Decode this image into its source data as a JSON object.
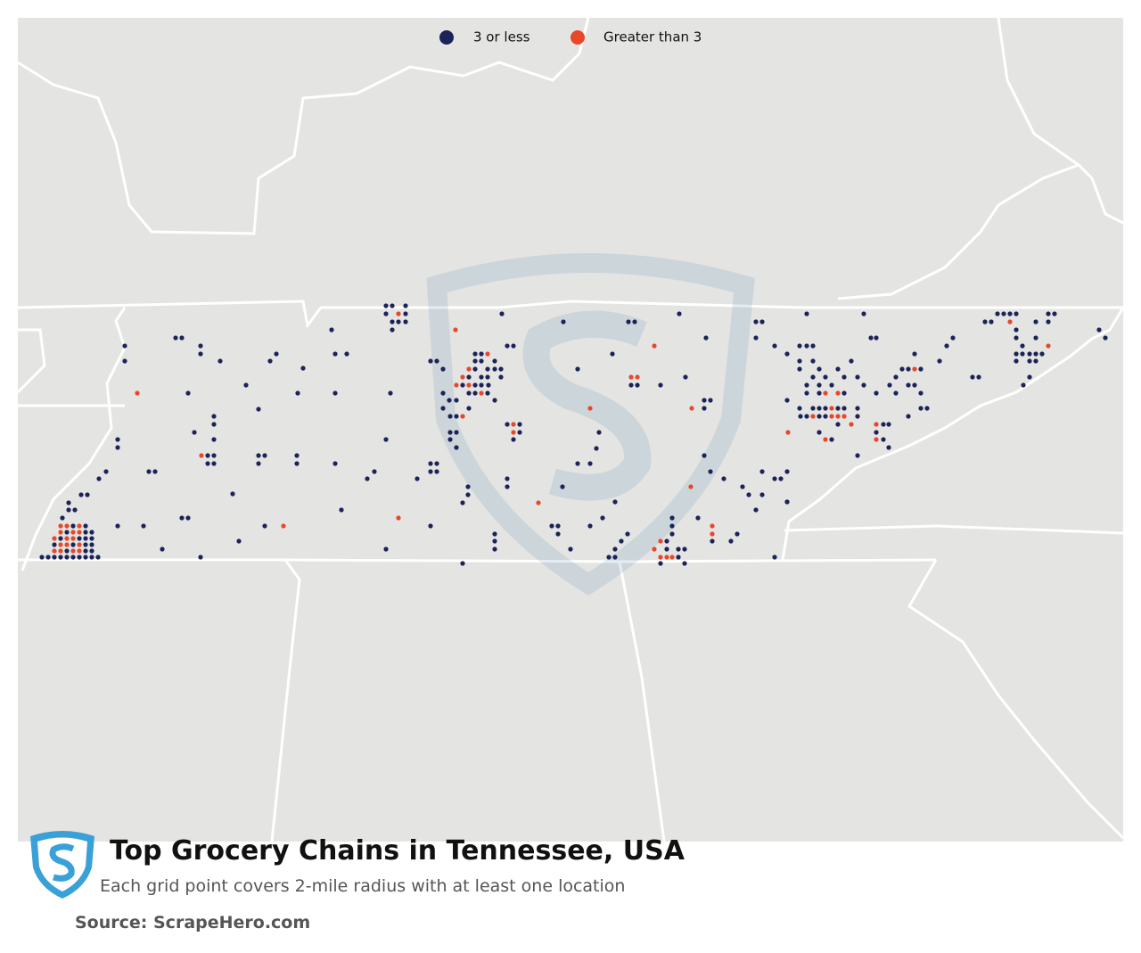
{
  "legend": [
    {
      "label": "3 or less",
      "color": "#1b2358"
    },
    {
      "label": "Greater than 3",
      "color": "#e8472a"
    }
  ],
  "title": "Top Grocery Chains in Tennessee, USA",
  "subtitle": "Each grid point covers 2-mile radius with at least one location",
  "source": "Source: ScrapeHero.com"
}
